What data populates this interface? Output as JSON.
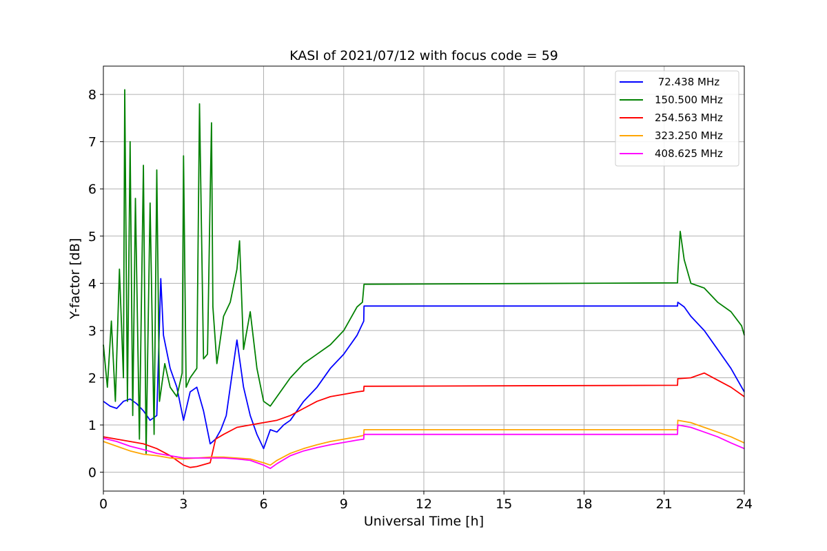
{
  "chart_data": {
    "type": "line",
    "title": "KASI of 2021/07/12 with focus code = 59",
    "xlabel": "Universal Time [h]",
    "ylabel": "Y-factor [dB]",
    "xlim": [
      0,
      24
    ],
    "ylim": [
      -0.4,
      8.6
    ],
    "xticks": [
      0,
      3,
      6,
      9,
      12,
      15,
      18,
      21,
      24
    ],
    "yticks": [
      0,
      1,
      2,
      3,
      4,
      5,
      6,
      7,
      8
    ],
    "xtick_labels": [
      "0",
      "3",
      "6",
      "9",
      "12",
      "15",
      "18",
      "21",
      "24"
    ],
    "ytick_labels": [
      "0",
      "1",
      "2",
      "3",
      "4",
      "5",
      "6",
      "7",
      "8"
    ],
    "grid": true,
    "legend_position": "upper-right",
    "series": [
      {
        "name": " 72.438 MHz",
        "color": "#0000ff",
        "x": [
          0.0,
          0.25,
          0.5,
          0.75,
          1.0,
          1.25,
          1.5,
          1.75,
          2.0,
          2.15,
          2.25,
          2.5,
          2.75,
          3.0,
          3.25,
          3.5,
          3.75,
          4.0,
          4.2,
          4.4,
          4.6,
          4.8,
          5.0,
          5.25,
          5.5,
          5.75,
          6.0,
          6.25,
          6.5,
          6.75,
          7.0,
          7.5,
          8.0,
          8.5,
          9.0,
          9.5,
          9.75,
          9.76,
          21.5,
          21.51,
          21.75,
          22.0,
          22.5,
          23.0,
          23.5,
          24.0
        ],
        "y": [
          1.5,
          1.4,
          1.35,
          1.5,
          1.55,
          1.45,
          1.3,
          1.1,
          1.2,
          4.1,
          2.9,
          2.2,
          1.8,
          1.1,
          1.7,
          1.8,
          1.3,
          0.6,
          0.7,
          0.9,
          1.2,
          2.0,
          2.8,
          1.8,
          1.2,
          0.8,
          0.5,
          0.9,
          0.85,
          1.0,
          1.1,
          1.5,
          1.8,
          2.2,
          2.5,
          2.9,
          3.2,
          3.52,
          3.52,
          3.6,
          3.5,
          3.3,
          3.0,
          2.6,
          2.2,
          1.7
        ]
      },
      {
        "name": "150.500 MHz",
        "color": "#008000",
        "x": [
          0.0,
          0.15,
          0.3,
          0.45,
          0.6,
          0.75,
          0.8,
          0.9,
          1.0,
          1.1,
          1.2,
          1.35,
          1.5,
          1.6,
          1.75,
          1.9,
          2.0,
          2.1,
          2.3,
          2.5,
          2.75,
          2.95,
          3.0,
          3.1,
          3.25,
          3.5,
          3.6,
          3.75,
          3.9,
          4.0,
          4.05,
          4.1,
          4.25,
          4.5,
          4.75,
          5.0,
          5.1,
          5.25,
          5.5,
          5.75,
          6.0,
          6.25,
          6.5,
          7.0,
          7.5,
          8.0,
          8.5,
          9.0,
          9.3,
          9.5,
          9.7,
          9.76,
          21.5,
          21.51,
          21.6,
          21.75,
          22.0,
          22.5,
          23.0,
          23.5,
          23.9,
          24.0
        ],
        "y": [
          2.7,
          1.8,
          3.2,
          1.5,
          4.3,
          2.0,
          8.1,
          1.5,
          7.0,
          1.2,
          5.8,
          0.7,
          6.5,
          0.4,
          5.7,
          0.8,
          6.4,
          1.5,
          2.3,
          1.8,
          1.6,
          2.1,
          6.7,
          1.8,
          2.0,
          2.2,
          7.8,
          2.4,
          2.5,
          5.9,
          7.4,
          3.5,
          2.3,
          3.3,
          3.6,
          4.3,
          4.9,
          2.6,
          3.4,
          2.2,
          1.5,
          1.4,
          1.6,
          2.0,
          2.3,
          2.5,
          2.7,
          3.0,
          3.3,
          3.5,
          3.6,
          3.98,
          4.01,
          4.2,
          5.1,
          4.5,
          4.0,
          3.9,
          3.6,
          3.4,
          3.1,
          2.9
        ]
      },
      {
        "name": "254.563 MHz",
        "color": "#ff0000",
        "x": [
          0.0,
          0.5,
          1.0,
          1.5,
          2.0,
          2.5,
          3.0,
          3.25,
          3.5,
          4.0,
          4.2,
          4.5,
          5.0,
          5.5,
          6.0,
          6.5,
          7.0,
          7.5,
          8.0,
          8.5,
          9.0,
          9.5,
          9.75,
          9.76,
          21.5,
          21.51,
          22.0,
          22.5,
          23.0,
          23.5,
          24.0
        ],
        "y": [
          0.75,
          0.7,
          0.65,
          0.6,
          0.5,
          0.35,
          0.15,
          0.1,
          0.12,
          0.2,
          0.7,
          0.8,
          0.95,
          1.0,
          1.05,
          1.1,
          1.2,
          1.35,
          1.5,
          1.6,
          1.65,
          1.7,
          1.72,
          1.82,
          1.84,
          1.98,
          2.0,
          2.1,
          1.95,
          1.8,
          1.6
        ]
      },
      {
        "name": "323.250 MHz",
        "color": "#ffa500",
        "x": [
          0.0,
          0.5,
          1.0,
          1.5,
          2.0,
          2.5,
          3.0,
          3.5,
          4.0,
          4.5,
          5.0,
          5.5,
          6.0,
          6.25,
          6.5,
          7.0,
          7.5,
          8.0,
          8.5,
          9.0,
          9.5,
          9.75,
          9.76,
          21.5,
          21.51,
          22.0,
          22.5,
          23.0,
          23.5,
          24.0
        ],
        "y": [
          0.65,
          0.55,
          0.45,
          0.38,
          0.35,
          0.3,
          0.28,
          0.3,
          0.32,
          0.32,
          0.3,
          0.28,
          0.2,
          0.15,
          0.25,
          0.4,
          0.5,
          0.58,
          0.65,
          0.7,
          0.75,
          0.78,
          0.9,
          0.9,
          1.1,
          1.05,
          0.95,
          0.85,
          0.75,
          0.62
        ]
      },
      {
        "name": "408.625 MHz",
        "color": "#ff00ff",
        "x": [
          0.0,
          0.5,
          1.0,
          1.5,
          2.0,
          2.5,
          3.0,
          3.5,
          4.0,
          4.5,
          5.0,
          5.5,
          6.0,
          6.25,
          6.5,
          7.0,
          7.5,
          8.0,
          8.5,
          9.0,
          9.5,
          9.75,
          9.76,
          21.5,
          21.51,
          22.0,
          22.5,
          23.0,
          23.5,
          24.0
        ],
        "y": [
          0.72,
          0.65,
          0.55,
          0.48,
          0.4,
          0.35,
          0.3,
          0.3,
          0.3,
          0.3,
          0.28,
          0.25,
          0.15,
          0.08,
          0.18,
          0.35,
          0.45,
          0.52,
          0.58,
          0.63,
          0.68,
          0.7,
          0.8,
          0.8,
          1.0,
          0.95,
          0.85,
          0.75,
          0.62,
          0.5
        ]
      }
    ]
  }
}
